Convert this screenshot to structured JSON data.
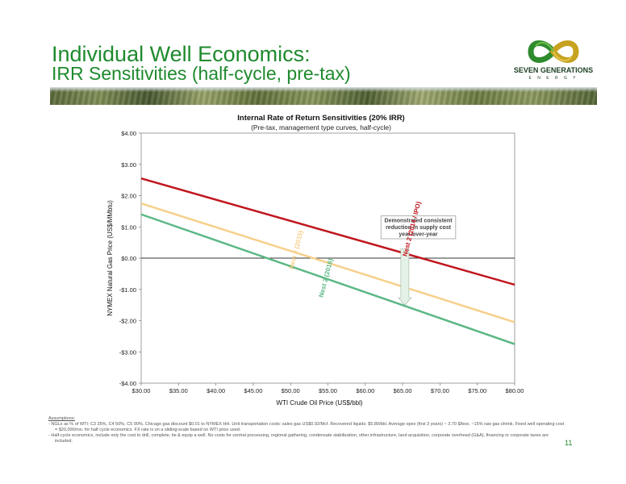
{
  "slide": {
    "title_line1": "Individual Well Economics:",
    "title_line2": "IRR Sensitivities (half-cycle, pre-tax)",
    "logo_name": "SEVEN GENERATIONS",
    "logo_sub": "E N E R G Y",
    "page_number": "11",
    "colors": {
      "title": "#1f8a2e",
      "logo_green": "#2e8b2e",
      "logo_olive": "#c6a21e"
    }
  },
  "chart_data": {
    "type": "line",
    "title": "Internal Rate of Return Sensitivities (20% IRR)",
    "subtitle": "(Pre-tax, management type curves, half-cycle)",
    "xlabel": "WTI Crude Oil Price (US$/bbl)",
    "ylabel": "NYMEX Natural Gas Price (US$/MMbtu)",
    "xlim": [
      30,
      80
    ],
    "ylim": [
      -4,
      4
    ],
    "x_ticks": [
      30,
      35,
      40,
      45,
      50,
      55,
      60,
      65,
      70,
      75,
      80
    ],
    "x_tick_labels": [
      "$30.00",
      "$35.00",
      "$40.00",
      "$45.00",
      "$50.00",
      "$55.00",
      "$60.00",
      "$65.00",
      "$70.00",
      "$75.00",
      "$80.00"
    ],
    "y_ticks": [
      4,
      3,
      2,
      1,
      0,
      -1,
      -2,
      -3,
      -4
    ],
    "y_tick_labels": [
      "$4.00",
      "$3.00",
      "$2.00",
      "$1.00",
      "$0.00",
      "-$1.00",
      "-$2.00",
      "-$3.00",
      "-$4.00"
    ],
    "grid": false,
    "series": [
      {
        "name": "Nest 2 (2014 / IPO)",
        "x": [
          30,
          80
        ],
        "y": [
          2.55,
          -0.85
        ],
        "color": "#c0161f",
        "label_x": 66.5,
        "label_y": 0.92
      },
      {
        "name": "Nest 2 (2015)",
        "x": [
          30,
          80
        ],
        "y": [
          1.75,
          -2.05
        ],
        "color": "#f6d08b",
        "label_x": 51,
        "label_y": 0.25
      },
      {
        "name": "Nest 2 (2016)",
        "x": [
          30,
          80
        ],
        "y": [
          1.4,
          -2.75
        ],
        "color": "#5cb885",
        "label_x": 55,
        "label_y": -0.65
      }
    ],
    "annotation": {
      "text_lines": [
        "Demonstrated consistent",
        "reduction in supply cost",
        "year-over-year"
      ],
      "box_x": [
        62.1,
        72.1
      ],
      "box_y": [
        1.35,
        0.62
      ],
      "arrow_x": 65.3,
      "arrow_y_from": 0.3,
      "arrow_y_to": -1.5
    }
  },
  "footnotes": {
    "heading": "Assumptions:",
    "items": [
      "- NGLs as % of WTI: C3 35%, C4 50%, C5 90%. Chicago gas discount $0.01 to NYMEX HH. Unit transportation costs: sales gas US$0.92/Mcf. Recovered liquids: $5.80/bbl. Average opex (first 3 years) ~ ­3.70 $/boe, ~15% raw gas shrink. Fixed well operating cost = $20,000/mo. for half cycle economics. FX rate is on a sliding-scale based on WTI price used.",
      "- Half-cycle economics, include only the cost to drill, complete, tie & equip a well. No costs for central processing, regional gathering, condensate stabilization, other infrastructure, land acquisition, corporate overhead (G&A), financing or corporate taxes are included."
    ]
  }
}
